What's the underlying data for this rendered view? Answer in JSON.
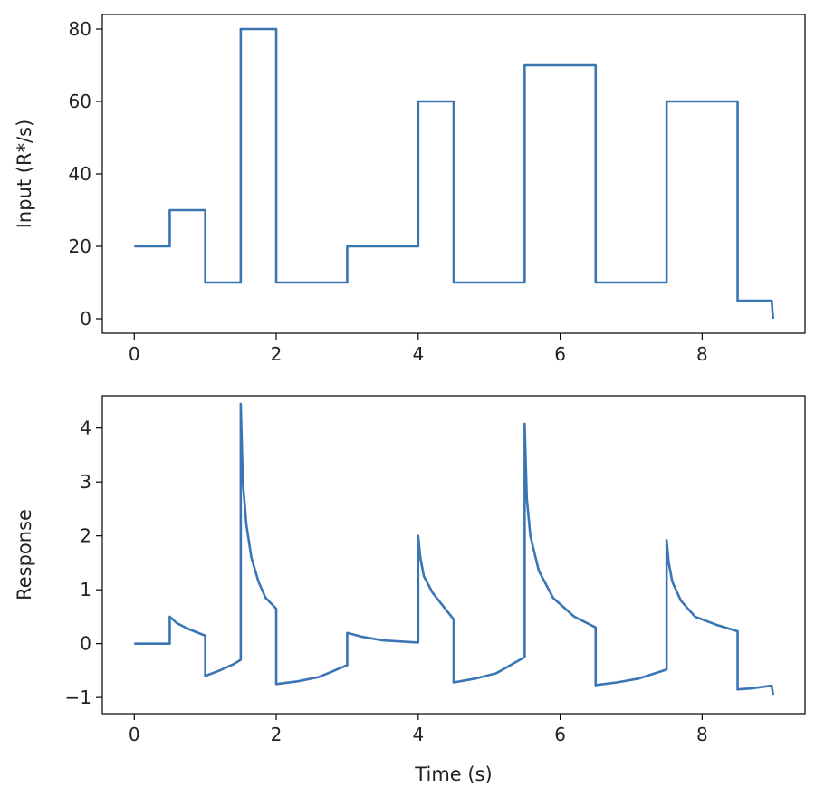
{
  "chart_data": [
    {
      "type": "line",
      "title": "",
      "xlabel": "",
      "ylabel": "Input (R*/s)",
      "xlim": [
        -0.45,
        9.45
      ],
      "ylim": [
        -4,
        84
      ],
      "xticks": [
        0,
        2,
        4,
        6,
        8
      ],
      "yticks": [
        0,
        20,
        40,
        60,
        80
      ],
      "xtick_labels": [
        "0",
        "2",
        "4",
        "6",
        "8"
      ],
      "ytick_labels": [
        "0",
        "20",
        "40",
        "60",
        "80"
      ],
      "grid": false,
      "color": "#3a75b4",
      "series": [
        {
          "x": [
            0,
            0.5,
            0.5,
            1.0,
            1.0,
            1.5,
            1.5,
            2.0,
            2.0,
            3.0,
            3.0,
            4.0,
            4.0,
            4.5,
            4.5,
            5.5,
            5.5,
            6.5,
            6.5,
            7.5,
            7.5,
            8.5,
            8.5,
            8.98,
            9.0
          ],
          "y": [
            20,
            20,
            30,
            30,
            10,
            10,
            80,
            80,
            10,
            10,
            20,
            20,
            60,
            60,
            10,
            10,
            70,
            70,
            10,
            10,
            60,
            60,
            5,
            5,
            0
          ]
        }
      ]
    },
    {
      "type": "line",
      "title": "",
      "xlabel": "Time (s)",
      "ylabel": "Response",
      "xlim": [
        -0.45,
        9.45
      ],
      "ylim": [
        -1.3,
        4.6
      ],
      "xticks": [
        0,
        2,
        4,
        6,
        8
      ],
      "yticks": [
        -1,
        0,
        1,
        2,
        3,
        4
      ],
      "xtick_labels": [
        "0",
        "2",
        "4",
        "6",
        "8"
      ],
      "ytick_labels": [
        "−1",
        "0",
        "1",
        "2",
        "3",
        "4"
      ],
      "grid": false,
      "color": "#3a75b4",
      "series": [
        {
          "x": [
            0,
            0.5,
            0.5,
            0.6,
            0.75,
            0.9,
            1.0,
            1.0,
            1.2,
            1.4,
            1.5,
            1.5,
            1.53,
            1.58,
            1.65,
            1.75,
            1.85,
            2.0,
            2.0,
            2.3,
            2.6,
            3.0,
            3.0,
            3.2,
            3.5,
            4.0,
            4.0,
            4.03,
            4.08,
            4.2,
            4.35,
            4.5,
            4.5,
            4.8,
            5.1,
            5.5,
            5.5,
            5.53,
            5.58,
            5.7,
            5.9,
            6.2,
            6.5,
            6.5,
            6.8,
            7.1,
            7.5,
            7.5,
            7.53,
            7.58,
            7.7,
            7.9,
            8.2,
            8.5,
            8.5,
            8.7,
            8.98,
            9.0
          ],
          "y": [
            0,
            0,
            0.5,
            0.38,
            0.28,
            0.2,
            0.15,
            -0.6,
            -0.5,
            -0.38,
            -0.3,
            4.45,
            3.0,
            2.2,
            1.6,
            1.15,
            0.85,
            0.65,
            -0.75,
            -0.7,
            -0.62,
            -0.4,
            0.2,
            0.13,
            0.06,
            0.02,
            2.0,
            1.6,
            1.25,
            0.95,
            0.7,
            0.45,
            -0.72,
            -0.65,
            -0.55,
            -0.25,
            4.08,
            2.7,
            2.0,
            1.35,
            0.85,
            0.5,
            0.3,
            -0.77,
            -0.72,
            -0.65,
            -0.48,
            1.92,
            1.5,
            1.15,
            0.8,
            0.5,
            0.35,
            0.23,
            -0.85,
            -0.83,
            -0.78,
            -0.95
          ]
        }
      ]
    }
  ]
}
